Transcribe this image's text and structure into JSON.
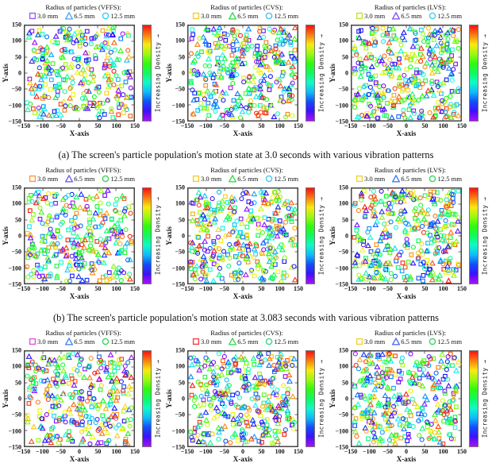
{
  "figure": {
    "captions": {
      "a": "(a) The screen's particle population's motion state at 3.0 seconds with various vibration patterns",
      "b": "(b) The screen's particle population's motion state at 3.083 seconds with various vibration patterns"
    }
  },
  "chart_data": [
    {
      "type": "scatter",
      "legend_title": "Radius of particles (VFFS):",
      "legend_items": [
        {
          "shape": "square",
          "label": "3.0 mm",
          "color": "#9d5ef2"
        },
        {
          "shape": "triangle",
          "label": "6.5 mm",
          "color": "#52a9f5"
        },
        {
          "shape": "circle",
          "label": "12.5 mm",
          "color": "#35d0e8"
        }
      ],
      "xlabel": "X-axis",
      "ylabel": "Y-axis",
      "xlim": [
        -150,
        150
      ],
      "ylim": [
        -150,
        150
      ],
      "xticks": [
        "−150",
        "−100",
        "−50",
        "0",
        "50",
        "100",
        "150"
      ],
      "yticks": [
        "150",
        "100",
        "50",
        "0",
        "−50",
        "−100",
        "−150"
      ],
      "colorbar_label": "Increasing Density",
      "colorbar_arrow": "→",
      "color_scale": "rainbow: violet = low density, red = high density",
      "points_distribution": "uniform random across screen area",
      "points_per_shape": 100,
      "seed": 13
    },
    {
      "type": "scatter",
      "legend_title": "Radius of particles (CVS):",
      "legend_items": [
        {
          "shape": "square",
          "label": "3.0 mm",
          "color": "#f2d02e"
        },
        {
          "shape": "triangle",
          "label": "6.5 mm",
          "color": "#3fd94f"
        },
        {
          "shape": "circle",
          "label": "12.5 mm",
          "color": "#4ac2f2"
        }
      ],
      "xlabel": "X-axis",
      "ylabel": "Y-axis",
      "xlim": [
        -150,
        150
      ],
      "ylim": [
        -150,
        150
      ],
      "xticks": [
        "−150",
        "−100",
        "−50",
        "0",
        "50",
        "100",
        "150"
      ],
      "yticks": [
        "150",
        "100",
        "50",
        "0",
        "−50",
        "−100",
        "−150"
      ],
      "colorbar_label": "Increasing Density",
      "colorbar_arrow": "→",
      "color_scale": "rainbow: violet = low density, red = high density",
      "points_distribution": "uniform random across screen area",
      "points_per_shape": 120,
      "seed": 27
    },
    {
      "type": "scatter",
      "legend_title": "Radius of particles (LVS):",
      "legend_items": [
        {
          "shape": "square",
          "label": "3.0 mm",
          "color": "#c6e038"
        },
        {
          "shape": "triangle",
          "label": "6.5 mm",
          "color": "#8a55f0"
        },
        {
          "shape": "circle",
          "label": "12.5 mm",
          "color": "#38d5e6"
        }
      ],
      "xlabel": "X-axis",
      "ylabel": "Y-axis",
      "xlim": [
        -150,
        150
      ],
      "ylim": [
        -150,
        150
      ],
      "xticks": [
        "−150",
        "−100",
        "−50",
        "0",
        "50",
        "100",
        "150"
      ],
      "yticks": [
        "150",
        "100",
        "50",
        "0",
        "−50",
        "−100",
        "−150"
      ],
      "colorbar_label": "Increasing Density",
      "colorbar_arrow": "→",
      "color_scale": "rainbow: violet = low density, red = high density",
      "points_distribution": "uniform random across screen area",
      "points_per_shape": 126,
      "seed": 35
    },
    {
      "type": "scatter",
      "legend_title": "Radius of particles (VFFS):",
      "legend_items": [
        {
          "shape": "square",
          "label": "3.0 mm",
          "color": "#ff9a40"
        },
        {
          "shape": "triangle",
          "label": "6.5 mm",
          "color": "#6e61f2"
        },
        {
          "shape": "circle",
          "label": "12.5 mm",
          "color": "#3bd457"
        }
      ],
      "xlabel": "X-axis",
      "ylabel": "Y-axis",
      "xlim": [
        -150,
        150
      ],
      "ylim": [
        -150,
        150
      ],
      "xticks": [
        "−150",
        "−100",
        "−50",
        "0",
        "50",
        "100",
        "150"
      ],
      "yticks": [
        "150",
        "100",
        "50",
        "0",
        "−50",
        "−100",
        "−150"
      ],
      "colorbar_label": "Increasing Density",
      "colorbar_arrow": "→",
      "color_scale": "rainbow: violet = low density, red = high density",
      "points_distribution": "uniform random across screen area",
      "points_per_shape": 100,
      "seed": 42
    },
    {
      "type": "scatter",
      "legend_title": "Radius of particles (CVS):",
      "legend_items": [
        {
          "shape": "square",
          "label": "3.0 mm",
          "color": "#f2d02e"
        },
        {
          "shape": "triangle",
          "label": "6.5 mm",
          "color": "#3fd94f"
        },
        {
          "shape": "circle",
          "label": "12.5 mm",
          "color": "#46c8f0"
        }
      ],
      "xlabel": "X-axis",
      "ylabel": "Y-axis",
      "xlim": [
        -150,
        150
      ],
      "ylim": [
        -150,
        150
      ],
      "xticks": [
        "−150",
        "−100",
        "−50",
        "0",
        "50",
        "100",
        "150"
      ],
      "yticks": [
        "150",
        "100",
        "50",
        "0",
        "−50",
        "−100",
        "−150"
      ],
      "colorbar_label": "Increasing Density",
      "colorbar_arrow": "→",
      "color_scale": "rainbow: violet = low density, red = high density",
      "points_distribution": "uniform random across screen area",
      "points_per_shape": 115,
      "seed": 58
    },
    {
      "type": "scatter",
      "legend_title": "Radius of particles (LVS):",
      "legend_items": [
        {
          "shape": "square",
          "label": "3.0 mm",
          "color": "#f0d435"
        },
        {
          "shape": "triangle",
          "label": "6.5 mm",
          "color": "#4a7df2"
        },
        {
          "shape": "circle",
          "label": "12.5 mm",
          "color": "#3bd462"
        }
      ],
      "xlabel": "X-axis",
      "ylabel": "Y-axis",
      "xlim": [
        -150,
        150
      ],
      "ylim": [
        -150,
        150
      ],
      "xticks": [
        "−150",
        "−100",
        "−50",
        "0",
        "50",
        "100",
        "150"
      ],
      "yticks": [
        "150",
        "100",
        "50",
        "0",
        "−50",
        "−100",
        "−150"
      ],
      "colorbar_label": "Increasing Density",
      "colorbar_arrow": "→",
      "color_scale": "rainbow: violet = low density, red = high density",
      "points_distribution": "uniform random across screen area",
      "points_per_shape": 122,
      "seed": 61
    },
    {
      "type": "scatter",
      "legend_title": "Radius of particles (VFFS):",
      "legend_items": [
        {
          "shape": "square",
          "label": "3.0 mm",
          "color": "#e257e2"
        },
        {
          "shape": "triangle",
          "label": "6.5 mm",
          "color": "#4a86f0"
        },
        {
          "shape": "circle",
          "label": "12.5 mm",
          "color": "#3bd45c"
        }
      ],
      "xlabel": "X-axis",
      "ylabel": "Y-axis",
      "xlim": [
        -150,
        150
      ],
      "ylim": [
        -150,
        150
      ],
      "xticks": [
        "−150",
        "−100",
        "−50",
        "0",
        "50",
        "100",
        "150"
      ],
      "yticks": [
        "150",
        "100",
        "50",
        "0",
        "−50",
        "−100",
        "−150"
      ],
      "colorbar_label": "Increasing Density",
      "colorbar_arrow": "→",
      "color_scale": "rainbow: violet = low density, red = high density",
      "points_distribution": "uniform random across screen area",
      "points_per_shape": 104,
      "seed": 74
    },
    {
      "type": "scatter",
      "legend_title": "Radius of particles (CVS):",
      "legend_items": [
        {
          "shape": "square",
          "label": "3.0 mm",
          "color": "#f04444"
        },
        {
          "shape": "triangle",
          "label": "6.5 mm",
          "color": "#44d660"
        },
        {
          "shape": "circle",
          "label": "12.5 mm",
          "color": "#3ed68e"
        }
      ],
      "xlabel": "X-axis",
      "ylabel": "Y-axis",
      "xlim": [
        -150,
        150
      ],
      "ylim": [
        -150,
        150
      ],
      "xticks": [
        "−150",
        "−100",
        "−50",
        "0",
        "50",
        "100",
        "150"
      ],
      "yticks": [
        "150",
        "100",
        "50",
        "0",
        "−50",
        "−100",
        "−150"
      ],
      "colorbar_label": "Increasing Density",
      "colorbar_arrow": "→",
      "color_scale": "rainbow: violet = low density, red = high density",
      "points_distribution": "uniform random across screen area",
      "points_per_shape": 118,
      "seed": 86
    },
    {
      "type": "scatter",
      "legend_title": "Radius of particles (LVS):",
      "legend_items": [
        {
          "shape": "square",
          "label": "3.0 mm",
          "color": "#f0d435"
        },
        {
          "shape": "triangle",
          "label": "6.5 mm",
          "color": "#5570f2"
        },
        {
          "shape": "circle",
          "label": "12.5 mm",
          "color": "#3cd45e"
        }
      ],
      "xlabel": "X-axis",
      "ylabel": "Y-axis",
      "xlim": [
        -150,
        150
      ],
      "ylim": [
        -150,
        150
      ],
      "xticks": [
        "−150",
        "−100",
        "−50",
        "0",
        "50",
        "100",
        "150"
      ],
      "yticks": [
        "150",
        "100",
        "50",
        "0",
        "−50",
        "−100",
        "−150"
      ],
      "colorbar_label": "Increasing Density",
      "colorbar_arrow": "→",
      "color_scale": "rainbow: violet = low density, red = high density",
      "points_distribution": "uniform random across screen area",
      "points_per_shape": 116,
      "seed": 97
    }
  ]
}
